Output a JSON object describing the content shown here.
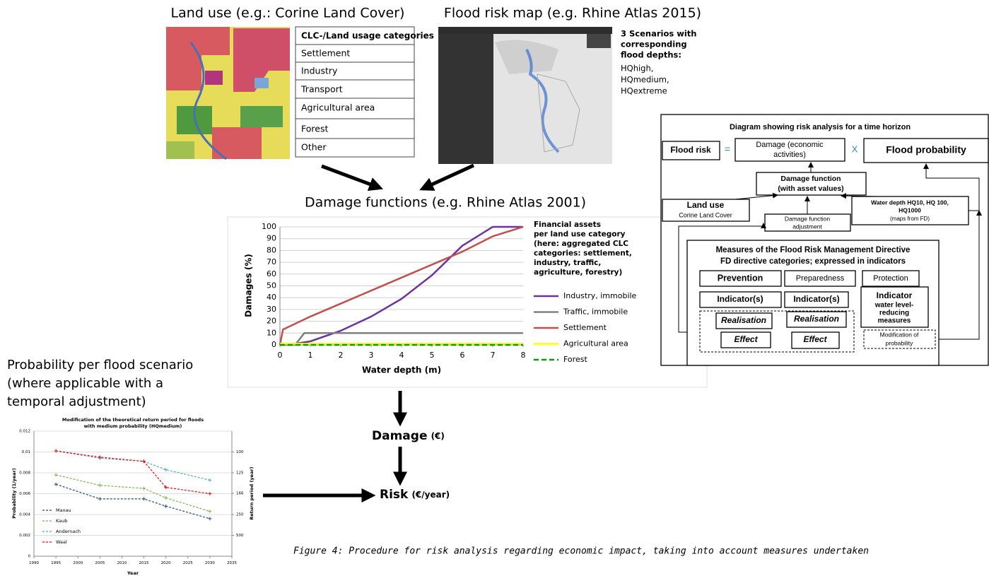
{
  "land_use": {
    "title": "Land use (e.g.: Corine Land Cover)",
    "table": {
      "header": "CLC-/Land usage categories",
      "rows": [
        "Settlement",
        "Industry",
        "Transport",
        "Agricultural area",
        "Forest",
        "Other"
      ]
    }
  },
  "flood_map": {
    "title": "Flood risk map (e.g. Rhine Atlas 2015)",
    "note_bold": [
      "3 Scenarios with",
      "corresponding",
      "flood depths:"
    ],
    "note": [
      "HQhigh,",
      "HQmedium,",
      "HQextreme"
    ]
  },
  "chart_data": [
    {
      "type": "line",
      "title": "Damage functions (e.g. Rhine Atlas 2001)",
      "x_label": "Water depth (m)",
      "y_label": "Damages (%)",
      "annotation": [
        "Financial assets",
        "per land use category",
        "(here: aggregated CLC",
        "categories: settlement,",
        "industry, traffic,",
        "agriculture, forestry)"
      ],
      "xlim": [
        0,
        8
      ],
      "xticks": [
        0,
        1,
        2,
        3,
        4,
        5,
        6,
        7,
        8
      ],
      "ylim": [
        0,
        100
      ],
      "yticks": [
        0,
        10,
        20,
        30,
        40,
        50,
        60,
        70,
        80,
        90,
        100
      ],
      "grid": true,
      "legend": "right",
      "series": [
        {
          "name": "Industry, immobile",
          "color": "#7030a0",
          "x": [
            0,
            0.5,
            1,
            2,
            3,
            4,
            5,
            6,
            7,
            8
          ],
          "values": [
            0,
            1,
            3,
            12,
            24,
            39,
            59,
            84,
            100,
            100
          ]
        },
        {
          "name": "Traffic, immobile",
          "color": "#808080",
          "x": [
            0,
            0.5,
            0.8,
            8
          ],
          "values": [
            0,
            0,
            10,
            10
          ]
        },
        {
          "name": "Settlement",
          "color": "#c0504d",
          "x": [
            0,
            0.1,
            1,
            2,
            3,
            4,
            5,
            6,
            7,
            8
          ],
          "values": [
            0,
            13,
            24,
            35,
            46,
            57,
            68,
            79,
            92,
            100
          ]
        },
        {
          "name": "Agricultural area",
          "color": "#ffff00",
          "x": [
            0,
            8
          ],
          "values": [
            1,
            1
          ]
        },
        {
          "name": "Forest",
          "color": "#00a000",
          "dashed": true,
          "x": [
            0,
            8
          ],
          "values": [
            0,
            0
          ]
        }
      ]
    },
    {
      "type": "line",
      "title": [
        "Modification of the theoretical return period for floods",
        "with medium probability (HQmedium)"
      ],
      "x_label": "Year",
      "y_label": "Probability (1/year)",
      "y2_label": "Return period (year)",
      "xlim": [
        1990,
        2035
      ],
      "xticks": [
        1990,
        1995,
        2000,
        2005,
        2010,
        2015,
        2020,
        2025,
        2030,
        2035
      ],
      "ylim": [
        0,
        0.012
      ],
      "yticks": [
        0,
        0.002,
        0.004,
        0.006,
        0.008,
        0.01,
        0.012
      ],
      "y2_scale": "reciprocal",
      "y2ticks": [
        100,
        125,
        166,
        250,
        500
      ],
      "grid": true,
      "legend": "lower left",
      "markers": true,
      "series": [
        {
          "name": "Maxau",
          "color": "#1f4e79",
          "dashed": true,
          "x": [
            1995,
            2005,
            2015,
            2020,
            2030
          ],
          "values": [
            0.0069,
            0.0055,
            0.0055,
            0.0048,
            0.0036
          ]
        },
        {
          "name": "Kaub",
          "color": "#77b64a",
          "dashed": true,
          "x": [
            1995,
            2005,
            2015,
            2020,
            2030
          ],
          "values": [
            0.0078,
            0.0068,
            0.0065,
            0.0056,
            0.0043
          ]
        },
        {
          "name": "Andernach",
          "color": "#4bacc6",
          "dashed": true,
          "x": [
            1995,
            2005,
            2015,
            2020,
            2030
          ],
          "values": [
            0.0101,
            0.0094,
            0.0091,
            0.0083,
            0.0073
          ]
        },
        {
          "name": "Waal",
          "color": "#ff0000",
          "dashed": true,
          "x": [
            1995,
            2005,
            2015,
            2020,
            2030
          ],
          "values": [
            0.0101,
            0.0095,
            0.0091,
            0.0066,
            0.006
          ]
        }
      ]
    }
  ],
  "probability_heading": [
    "Probability per flood scenario",
    "(where applicable with a",
    "temporal adjustment)"
  ],
  "flow": {
    "damage": "Damage",
    "damage_unit": "(€)",
    "risk": "Risk",
    "risk_unit": "(€/year)"
  },
  "risk_diagram": {
    "title": "Diagram showing risk analysis  for a time horizon",
    "flood_risk": "Flood risk",
    "equals": "=",
    "damage": [
      "Damage (economic",
      "activities)"
    ],
    "times": "X",
    "flood_probability": "Flood  probability",
    "damage_function": [
      "Damage function",
      "(with asset values)"
    ],
    "land_use": "Land use",
    "land_use_source": "Corine Land Cover",
    "adjustment": [
      "Damage function",
      "adjustment"
    ],
    "water_depth": [
      "Water depth HQ10, HQ 100,",
      "HQ1000",
      "(maps from FD)"
    ],
    "measures": [
      "Measures of the Flood Risk Management Directive",
      "FD directive categories; expressed in indicators"
    ],
    "prevention": "Prevention",
    "preparedness": "Preparedness",
    "protection": "Protection",
    "indicators": [
      "Indicator(s)",
      "Indicator(s)"
    ],
    "indicator_protection": "Indicator",
    "indicator_protection_detail": [
      "water level-",
      "reducing",
      "measures"
    ],
    "realisation": [
      "Realisation",
      "Realisation"
    ],
    "effect": [
      "Effect",
      "Effect"
    ],
    "modification": [
      "Modification of",
      "probability"
    ]
  },
  "caption": "Figure 4: Procedure for risk analysis regarding economic impact, taking into account measures undertaken"
}
